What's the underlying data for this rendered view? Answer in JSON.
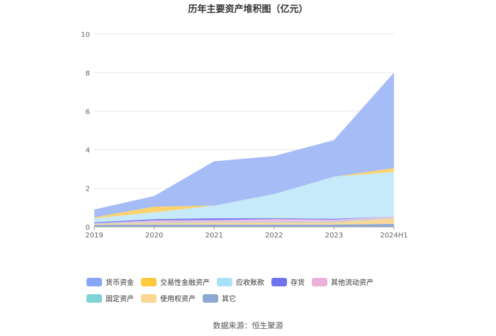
{
  "chart_data": {
    "type": "area",
    "title": "历年主要资产堆积图（亿元）",
    "categories": [
      "2019",
      "2020",
      "2021",
      "2022",
      "2023",
      "2024H1"
    ],
    "y_ticks": [
      "0",
      "2",
      "4",
      "6",
      "8",
      "10"
    ],
    "ylim": [
      0,
      10
    ],
    "grid": true,
    "legend_position": "bottom",
    "stacked": true,
    "series": [
      {
        "name": "其它",
        "color": "#8fa9d6",
        "values": [
          0.1,
          0.12,
          0.12,
          0.12,
          0.12,
          0.15
        ]
      },
      {
        "name": "使用权资产",
        "color": "#fad899",
        "values": [
          0.05,
          0.08,
          0.1,
          0.1,
          0.12,
          0.3
        ]
      },
      {
        "name": "固定资产",
        "color": "#86d4d9",
        "values": [
          0.02,
          0.03,
          0.03,
          0.03,
          0.03,
          0.03
        ]
      },
      {
        "name": "其他流动资产",
        "color": "#f0bfe0",
        "values": [
          0.02,
          0.1,
          0.1,
          0.15,
          0.1,
          0.05
        ]
      },
      {
        "name": "存货",
        "color": "#7b7ff0",
        "values": [
          0.05,
          0.07,
          0.1,
          0.05,
          0.05,
          0.0
        ]
      },
      {
        "name": "应收账款",
        "color": "#c6eaf9",
        "values": [
          0.2,
          0.35,
          0.65,
          1.25,
          2.18,
          2.32
        ]
      },
      {
        "name": "交易性金融资产",
        "color": "#fcd36d",
        "values": [
          0.05,
          0.3,
          0.0,
          0.0,
          0.0,
          0.2
        ]
      },
      {
        "name": "货币资金",
        "color": "#a6bcf7",
        "values": [
          0.41,
          0.55,
          2.3,
          1.97,
          1.9,
          4.95
        ]
      }
    ]
  },
  "legend": [
    {
      "label": "货币资金",
      "color": "#87a5f5"
    },
    {
      "label": "交易性金融资产",
      "color": "#fcc93f"
    },
    {
      "label": "应收账款",
      "color": "#a9e2f8"
    },
    {
      "label": "存货",
      "color": "#6e72ee"
    },
    {
      "label": "其他流动资产",
      "color": "#ebb1d8"
    },
    {
      "label": "固定资产",
      "color": "#7fd3d6"
    },
    {
      "label": "使用权资产",
      "color": "#fbd794"
    },
    {
      "label": "其它",
      "color": "#8ea8d4"
    }
  ],
  "source": "数据来源：恒生聚源"
}
